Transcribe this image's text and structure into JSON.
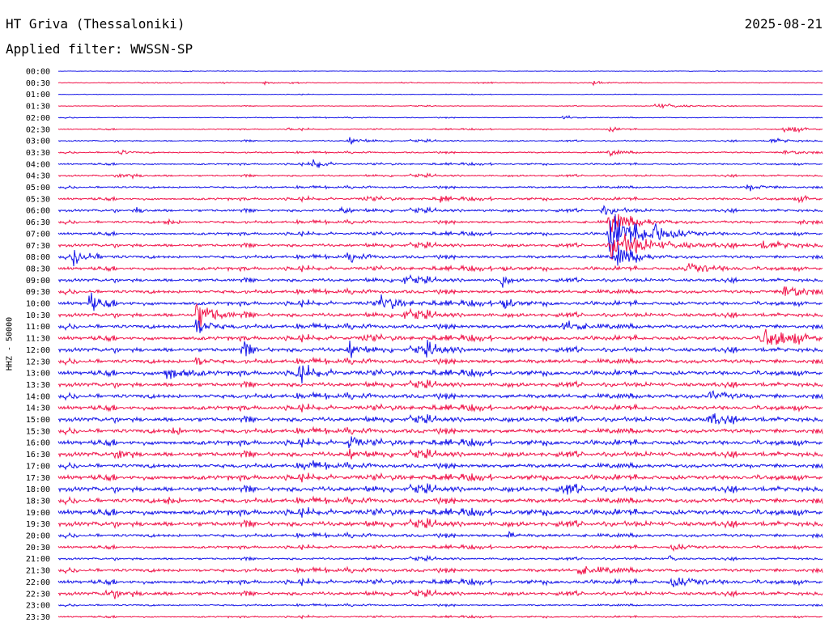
{
  "header": {
    "station": "HT Griva (Thessaloniki)",
    "date": "2025-08-21",
    "filter": "Applied filter: WWSSN-SP"
  },
  "chart_data": {
    "type": "line",
    "ylabel": "HHZ - 50000",
    "colors": {
      "even": "#1515e8",
      "odd": "#f0144a"
    },
    "trace_minutes": 30,
    "rows": [
      {
        "time": "00:00",
        "amp": 0.6,
        "events": []
      },
      {
        "time": "00:30",
        "amp": 0.8,
        "events": [
          [
            0.27,
            2.5,
            0.008
          ],
          [
            0.7,
            2,
            0.01
          ]
        ]
      },
      {
        "time": "01:00",
        "amp": 0.5,
        "events": []
      },
      {
        "time": "01:30",
        "amp": 0.6,
        "events": [
          [
            0.78,
            3,
            0.03
          ]
        ]
      },
      {
        "time": "02:00",
        "amp": 0.8,
        "events": [
          [
            0.66,
            3,
            0.01
          ]
        ]
      },
      {
        "time": "02:30",
        "amp": 1.0,
        "events": [
          [
            0.3,
            2.5,
            0.008
          ],
          [
            0.72,
            3,
            0.01
          ],
          [
            0.95,
            4,
            0.02
          ]
        ]
      },
      {
        "time": "03:00",
        "amp": 1.2,
        "events": [
          [
            0.38,
            4,
            0.015
          ],
          [
            0.93,
            3,
            0.02
          ]
        ]
      },
      {
        "time": "03:30",
        "amp": 1.4,
        "events": [
          [
            0.08,
            3,
            0.01
          ],
          [
            0.72,
            3,
            0.015
          ],
          [
            0.95,
            3,
            0.02
          ]
        ]
      },
      {
        "time": "04:00",
        "amp": 1.5,
        "events": [
          [
            0.33,
            7,
            0.012
          ]
        ]
      },
      {
        "time": "04:30",
        "amp": 1.6,
        "events": [
          [
            0.08,
            3,
            0.02
          ]
        ]
      },
      {
        "time": "05:00",
        "amp": 1.8,
        "events": [
          [
            0.9,
            3,
            0.02
          ]
        ]
      },
      {
        "time": "05:30",
        "amp": 2.2,
        "events": [
          [
            0.4,
            3,
            0.015
          ],
          [
            0.5,
            5,
            0.005
          ],
          [
            0.97,
            4,
            0.01
          ]
        ]
      },
      {
        "time": "06:00",
        "amp": 2.4,
        "events": [
          [
            0.1,
            4,
            0.01
          ],
          [
            0.37,
            4,
            0.01
          ],
          [
            0.71,
            4,
            0.02
          ]
        ]
      },
      {
        "time": "06:30",
        "amp": 2.4,
        "events": [
          [
            0.14,
            4,
            0.01
          ],
          [
            0.72,
            12,
            0.03
          ],
          [
            0.97,
            3,
            0.01
          ]
        ]
      },
      {
        "time": "07:00",
        "amp": 2.4,
        "events": [
          [
            0.72,
            26,
            0.035
          ],
          [
            0.78,
            8,
            0.02
          ]
        ]
      },
      {
        "time": "07:30",
        "amp": 2.8,
        "events": [
          [
            0.72,
            12,
            0.05
          ],
          [
            0.92,
            4,
            0.03
          ]
        ]
      },
      {
        "time": "08:00",
        "amp": 2.8,
        "events": [
          [
            0.02,
            12,
            0.015
          ],
          [
            0.38,
            5,
            0.015
          ],
          [
            0.73,
            14,
            0.02
          ]
        ]
      },
      {
        "time": "08:30",
        "amp": 3.0,
        "events": [
          [
            0.58,
            6,
            0.005
          ],
          [
            0.82,
            6,
            0.03
          ]
        ]
      },
      {
        "time": "09:00",
        "amp": 3.0,
        "events": [
          [
            0.45,
            5,
            0.01
          ],
          [
            0.58,
            10,
            0.005
          ]
        ]
      },
      {
        "time": "09:30",
        "amp": 3.2,
        "events": [
          [
            0.95,
            10,
            0.02
          ]
        ]
      },
      {
        "time": "10:00",
        "amp": 3.4,
        "events": [
          [
            0.04,
            10,
            0.015
          ],
          [
            0.42,
            8,
            0.02
          ],
          [
            0.58,
            14,
            0.008
          ]
        ]
      },
      {
        "time": "10:30",
        "amp": 3.4,
        "events": [
          [
            0.18,
            16,
            0.02
          ],
          [
            0.45,
            4,
            0.02
          ]
        ]
      },
      {
        "time": "11:00",
        "amp": 3.6,
        "events": [
          [
            0.18,
            10,
            0.015
          ],
          [
            0.66,
            6,
            0.02
          ]
        ]
      },
      {
        "time": "11:30",
        "amp": 3.6,
        "events": [
          [
            0.92,
            10,
            0.04
          ],
          [
            0.4,
            5,
            0.01
          ]
        ]
      },
      {
        "time": "12:00",
        "amp": 3.8,
        "events": [
          [
            0.24,
            10,
            0.01
          ],
          [
            0.38,
            10,
            0.01
          ],
          [
            0.48,
            5,
            0.02
          ]
        ]
      },
      {
        "time": "12:30",
        "amp": 3.8,
        "events": [
          [
            0.18,
            5,
            0.01
          ]
        ]
      },
      {
        "time": "13:00",
        "amp": 4.0,
        "events": [
          [
            0.14,
            10,
            0.02
          ],
          [
            0.31,
            8,
            0.02
          ]
        ]
      },
      {
        "time": "13:30",
        "amp": 3.8,
        "events": []
      },
      {
        "time": "14:00",
        "amp": 4.0,
        "events": [
          [
            0.85,
            5,
            0.02
          ]
        ]
      },
      {
        "time": "14:30",
        "amp": 3.8,
        "events": []
      },
      {
        "time": "15:00",
        "amp": 4.0,
        "events": [
          [
            0.85,
            6,
            0.02
          ]
        ]
      },
      {
        "time": "15:30",
        "amp": 4.0,
        "events": [
          [
            0.15,
            5,
            0.01
          ]
        ]
      },
      {
        "time": "16:00",
        "amp": 4.2,
        "events": [
          [
            0.38,
            8,
            0.01
          ]
        ]
      },
      {
        "time": "16:30",
        "amp": 4.2,
        "events": [
          [
            0.08,
            9,
            0.008
          ],
          [
            0.38,
            5,
            0.01
          ]
        ]
      },
      {
        "time": "17:00",
        "amp": 3.8,
        "events": [
          [
            0.32,
            4,
            0.02
          ]
        ]
      },
      {
        "time": "17:30",
        "amp": 4.2,
        "events": []
      },
      {
        "time": "18:00",
        "amp": 4.4,
        "events": [
          [
            0.66,
            4,
            0.02
          ]
        ]
      },
      {
        "time": "18:30",
        "amp": 4.2,
        "events": [
          [
            0.14,
            5,
            0.01
          ]
        ]
      },
      {
        "time": "19:00",
        "amp": 4.6,
        "events": []
      },
      {
        "time": "19:30",
        "amp": 4.4,
        "events": []
      },
      {
        "time": "20:00",
        "amp": 3.0,
        "events": [
          [
            0.59,
            6,
            0.005
          ]
        ]
      },
      {
        "time": "20:30",
        "amp": 2.4,
        "events": [
          [
            0.8,
            4,
            0.02
          ]
        ]
      },
      {
        "time": "21:00",
        "amp": 2.0,
        "events": [
          [
            0.8,
            5,
            0.005
          ]
        ]
      },
      {
        "time": "21:30",
        "amp": 3.2,
        "events": [
          [
            0.68,
            4,
            0.03
          ]
        ]
      },
      {
        "time": "22:00",
        "amp": 3.4,
        "events": [
          [
            0.8,
            6,
            0.03
          ]
        ]
      },
      {
        "time": "22:30",
        "amp": 3.2,
        "events": [
          [
            0.06,
            4,
            0.03
          ]
        ]
      },
      {
        "time": "23:00",
        "amp": 1.6,
        "events": []
      },
      {
        "time": "23:30",
        "amp": 1.4,
        "events": []
      }
    ]
  }
}
